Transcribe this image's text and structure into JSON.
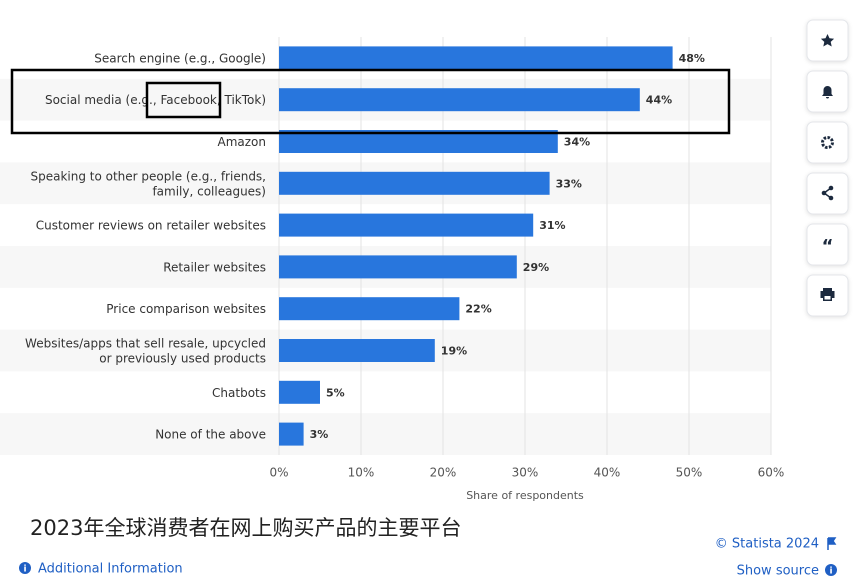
{
  "chart_data": {
    "type": "bar",
    "orientation": "horizontal",
    "title": "2023年全球消费者在网上购买产品的主要平台",
    "x_label": "Share of respondents",
    "categories": [
      [
        "Search engine (e.g., Google)"
      ],
      [
        "Social media (e.g., Facebook, TikTok)"
      ],
      [
        "Amazon"
      ],
      [
        "Speaking to other people (e.g., friends,",
        "family, colleagues)"
      ],
      [
        "Customer reviews on retailer websites"
      ],
      [
        "Retailer websites"
      ],
      [
        "Price comparison websites"
      ],
      [
        "Websites/apps that sell resale, upcycled",
        "or previously used products"
      ],
      [
        "Chatbots"
      ],
      [
        "None of the above"
      ]
    ],
    "values": [
      48,
      44,
      34,
      33,
      31,
      29,
      22,
      19,
      5,
      3
    ],
    "value_labels": [
      "48%",
      "44%",
      "34%",
      "33%",
      "31%",
      "29%",
      "22%",
      "19%",
      "5%",
      "3%"
    ],
    "color": "#2876dd",
    "xlim": [
      0,
      60
    ],
    "xticks": [
      {
        "value": 0,
        "label": "0%"
      },
      {
        "value": 10,
        "label": "10%"
      },
      {
        "value": 20,
        "label": "20%"
      },
      {
        "value": 30,
        "label": "30%"
      },
      {
        "value": 40,
        "label": "40%"
      },
      {
        "value": 50,
        "label": "50%"
      },
      {
        "value": 60,
        "label": "60%"
      }
    ],
    "grid": true
  },
  "footer": {
    "copyright": "© Statista 2024",
    "additional_info": "Additional Information",
    "show_source": "Show source"
  }
}
